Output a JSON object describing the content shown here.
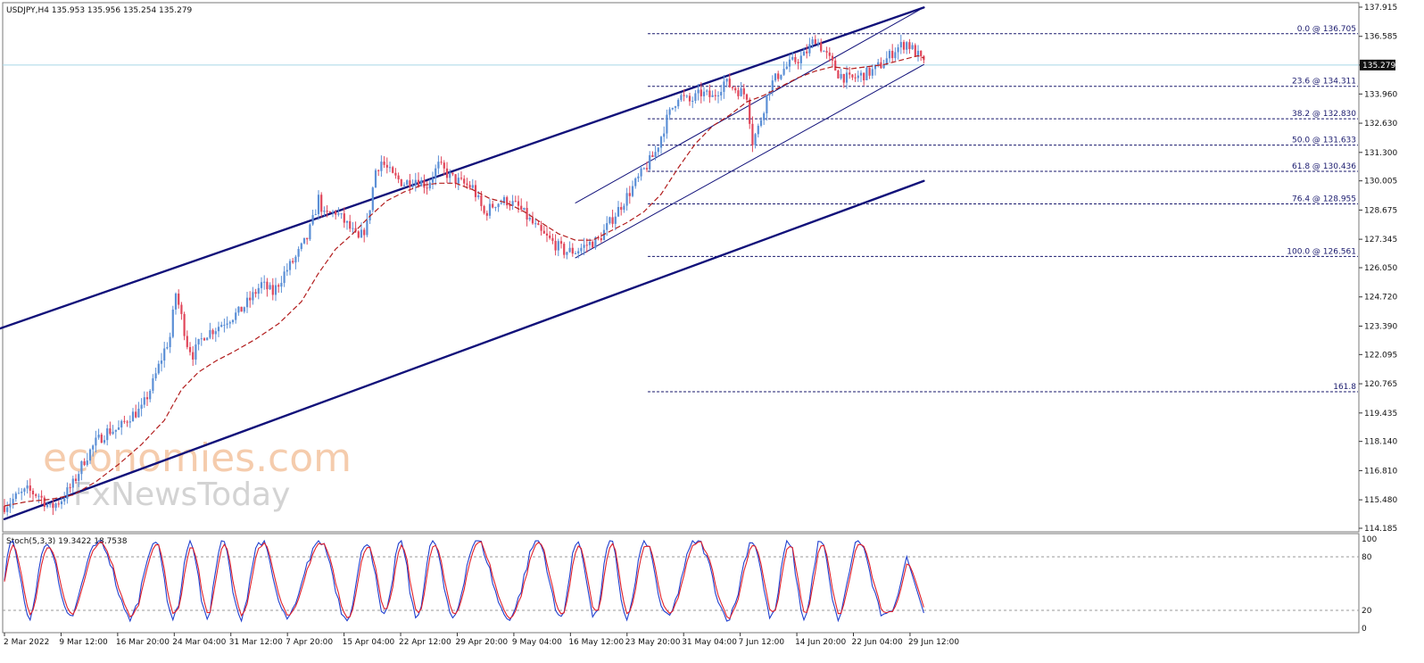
{
  "chart_data": [
    {
      "type": "candlestick",
      "title": "USDJPY,H4 135.953 135.956 135.254 135.279",
      "ylim": [
        114.185,
        137.915
      ],
      "y_ticks": [
        "137.915",
        "136.585",
        "135.279",
        "133.960",
        "132.630",
        "131.300",
        "130.005",
        "128.675",
        "127.345",
        "126.050",
        "124.720",
        "123.390",
        "122.095",
        "120.765",
        "119.435",
        "118.140",
        "116.810",
        "115.480",
        "114.185"
      ],
      "x_ticks": [
        "2 Mar 2022",
        "9 Mar 12:00",
        "16 Mar 20:00",
        "24 Mar 04:00",
        "31 Mar 12:00",
        "7 Apr 20:00",
        "15 Apr 04:00",
        "22 Apr 12:00",
        "29 Apr 20:00",
        "9 May 04:00",
        "16 May 12:00",
        "23 May 20:00",
        "31 May 04:00",
        "7 Jun 12:00",
        "14 Jun 20:00",
        "22 Jun 04:00",
        "29 Jun 12:00"
      ],
      "current_price": 135.279,
      "current_price_label": "135.279",
      "close_path": [
        [
          0,
          115.2
        ],
        [
          4,
          115.6
        ],
        [
          8,
          115.9
        ],
        [
          12,
          115.7
        ],
        [
          16,
          115.1
        ],
        [
          20,
          115.5
        ],
        [
          24,
          116.2
        ],
        [
          28,
          117.3
        ],
        [
          32,
          118.1
        ],
        [
          36,
          118.6
        ],
        [
          40,
          118.7
        ],
        [
          44,
          119.3
        ],
        [
          48,
          119.6
        ],
        [
          52,
          120.8
        ],
        [
          56,
          122.3
        ],
        [
          58,
          122.9
        ],
        [
          60,
          124.9
        ],
        [
          62,
          123.8
        ],
        [
          64,
          122.6
        ],
        [
          66,
          122.1
        ],
        [
          70,
          123.0
        ],
        [
          74,
          123.3
        ],
        [
          78,
          123.7
        ],
        [
          82,
          124.0
        ],
        [
          86,
          124.6
        ],
        [
          90,
          125.3
        ],
        [
          94,
          124.9
        ],
        [
          98,
          125.8
        ],
        [
          102,
          126.5
        ],
        [
          106,
          127.4
        ],
        [
          108,
          128.2
        ],
        [
          110,
          129.2
        ],
        [
          112,
          128.4
        ],
        [
          116,
          128.6
        ],
        [
          120,
          128.0
        ],
        [
          124,
          127.3
        ],
        [
          127,
          128.0
        ],
        [
          130,
          130.5
        ],
        [
          132,
          130.9
        ],
        [
          136,
          130.2
        ],
        [
          140,
          129.9
        ],
        [
          144,
          130.1
        ],
        [
          148,
          129.8
        ],
        [
          152,
          130.7
        ],
        [
          156,
          130.2
        ],
        [
          160,
          129.9
        ],
        [
          164,
          129.7
        ],
        [
          168,
          128.5
        ],
        [
          172,
          129.0
        ],
        [
          176,
          129.1
        ],
        [
          180,
          128.8
        ],
        [
          184,
          128.2
        ],
        [
          188,
          127.6
        ],
        [
          192,
          127.2
        ],
        [
          196,
          126.8
        ],
        [
          200,
          126.8
        ],
        [
          204,
          127.1
        ],
        [
          208,
          127.3
        ],
        [
          212,
          128.1
        ],
        [
          216,
          128.9
        ],
        [
          220,
          129.7
        ],
        [
          224,
          130.5
        ],
        [
          228,
          131.3
        ],
        [
          232,
          132.8
        ],
        [
          236,
          133.9
        ],
        [
          240,
          133.6
        ],
        [
          244,
          134.0
        ],
        [
          248,
          133.8
        ],
        [
          252,
          134.5
        ],
        [
          256,
          134.2
        ],
        [
          260,
          133.9
        ],
        [
          262,
          131.8
        ],
        [
          264,
          132.4
        ],
        [
          268,
          134.3
        ],
        [
          272,
          135.0
        ],
        [
          276,
          135.4
        ],
        [
          280,
          135.7
        ],
        [
          284,
          136.5
        ],
        [
          288,
          135.7
        ],
        [
          292,
          134.9
        ],
        [
          296,
          134.6
        ],
        [
          300,
          134.8
        ],
        [
          304,
          135.0
        ],
        [
          308,
          135.4
        ],
        [
          312,
          136.0
        ],
        [
          316,
          136.3
        ],
        [
          320,
          135.7
        ],
        [
          322,
          135.3
        ]
      ],
      "ma_path": [
        [
          0,
          115.2
        ],
        [
          8,
          115.4
        ],
        [
          16,
          115.5
        ],
        [
          24,
          115.7
        ],
        [
          32,
          116.3
        ],
        [
          40,
          117.1
        ],
        [
          48,
          118.0
        ],
        [
          56,
          119.1
        ],
        [
          62,
          120.5
        ],
        [
          68,
          121.3
        ],
        [
          74,
          121.8
        ],
        [
          80,
          122.2
        ],
        [
          88,
          122.8
        ],
        [
          96,
          123.5
        ],
        [
          104,
          124.5
        ],
        [
          110,
          125.8
        ],
        [
          116,
          126.9
        ],
        [
          122,
          127.6
        ],
        [
          128,
          128.4
        ],
        [
          134,
          129.1
        ],
        [
          140,
          129.5
        ],
        [
          146,
          129.8
        ],
        [
          152,
          129.9
        ],
        [
          158,
          129.9
        ],
        [
          164,
          129.6
        ],
        [
          170,
          129.2
        ],
        [
          176,
          129.0
        ],
        [
          182,
          128.6
        ],
        [
          188,
          128.1
        ],
        [
          194,
          127.6
        ],
        [
          200,
          127.3
        ],
        [
          206,
          127.3
        ],
        [
          212,
          127.7
        ],
        [
          218,
          128.1
        ],
        [
          224,
          128.6
        ],
        [
          230,
          129.4
        ],
        [
          236,
          130.6
        ],
        [
          242,
          131.7
        ],
        [
          248,
          132.5
        ],
        [
          254,
          133.0
        ],
        [
          260,
          133.6
        ],
        [
          266,
          133.9
        ],
        [
          272,
          134.3
        ],
        [
          278,
          134.7
        ],
        [
          284,
          135.0
        ],
        [
          290,
          135.2
        ],
        [
          296,
          135.1
        ],
        [
          302,
          135.2
        ],
        [
          308,
          135.3
        ],
        [
          314,
          135.5
        ],
        [
          320,
          135.7
        ],
        [
          322,
          135.6
        ]
      ],
      "fibonacci": [
        {
          "label": "0.0 @ 136.705",
          "price": 136.705
        },
        {
          "label": "23.6 @ 134.311",
          "price": 134.311
        },
        {
          "label": "38.2 @ 132.830",
          "price": 132.83
        },
        {
          "label": "50.0 @ 131.633",
          "price": 131.633
        },
        {
          "label": "61.8 @ 130.436",
          "price": 130.436
        },
        {
          "label": "76.4 @ 128.955",
          "price": 128.955
        },
        {
          "label": "100.0 @ 126.561",
          "price": 126.561
        },
        {
          "label": "161.8",
          "price": 120.4
        }
      ],
      "channels": {
        "main_lower": [
          [
            0,
            114.6
          ],
          [
            322,
            130.0
          ]
        ],
        "main_upper": [
          [
            -10,
            122.9
          ],
          [
            322,
            137.9
          ]
        ],
        "inner_lower": [
          [
            200,
            126.5
          ],
          [
            322,
            135.3
          ]
        ],
        "inner_upper": [
          [
            200,
            129.0
          ],
          [
            322,
            137.9
          ]
        ]
      }
    },
    {
      "type": "line",
      "title": "Stoch(5,3,3) 19.3422 18.7538",
      "ylim": [
        0,
        100
      ],
      "y_ticks": [
        "100",
        "80",
        "20",
        "0"
      ],
      "levels": [
        80,
        20
      ],
      "series": [
        {
          "name": "main",
          "color": "#1f3fcf"
        },
        {
          "name": "signal",
          "color": "#e0202a"
        }
      ],
      "last_values": [
        19.3422,
        18.7538
      ]
    }
  ],
  "watermark": {
    "line1": "economies.com",
    "line2": "FxNewsToday"
  },
  "colors": {
    "bull": "#5b8fd6",
    "bear": "#e0465a",
    "ma": "#b21d1d",
    "channel": "#11117a",
    "fib": "#1a1a6e",
    "price_line": "#a8d8e8"
  }
}
